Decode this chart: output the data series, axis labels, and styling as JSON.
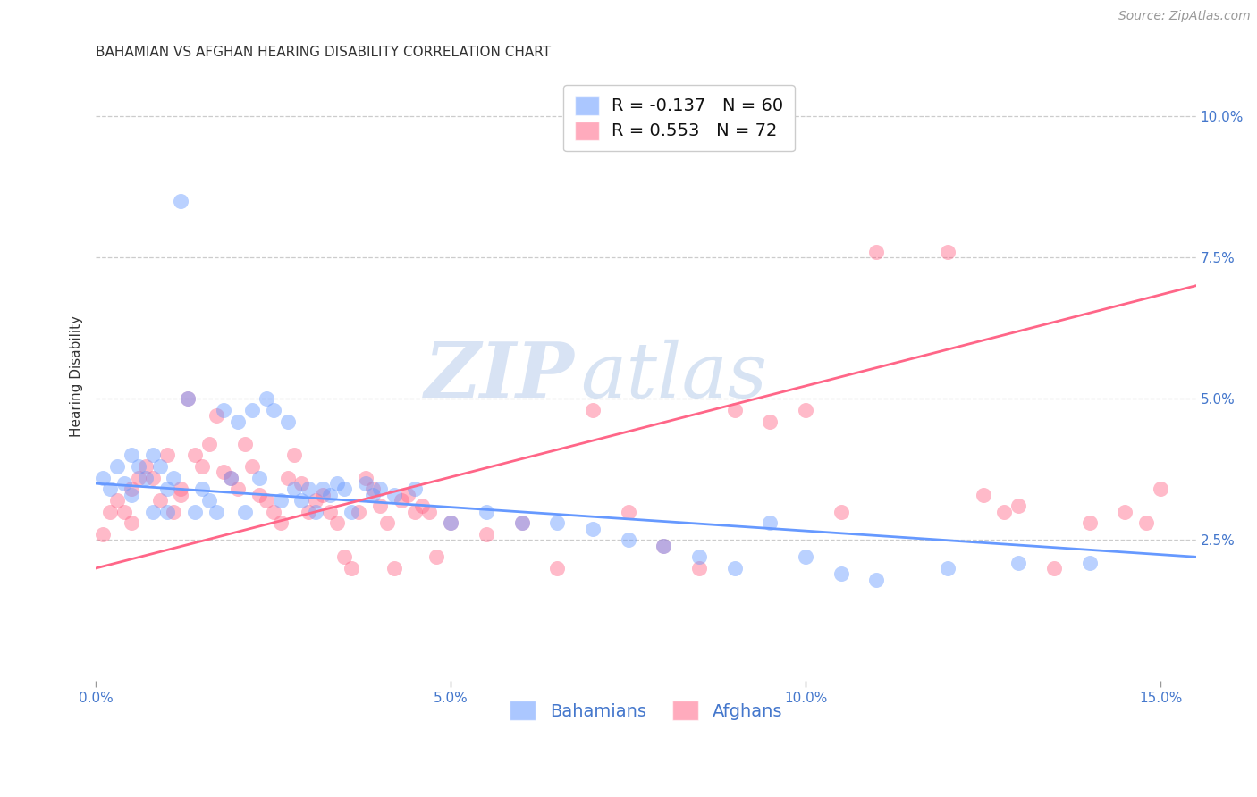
{
  "title": "BAHAMIAN VS AFGHAN HEARING DISABILITY CORRELATION CHART",
  "source": "Source: ZipAtlas.com",
  "ylabel": "Hearing Disability",
  "xlabel_ticks": [
    "0.0%",
    "5.0%",
    "10.0%",
    "15.0%"
  ],
  "xlabel_vals": [
    0.0,
    0.05,
    0.1,
    0.15
  ],
  "ylabel_ticks": [
    "2.5%",
    "5.0%",
    "7.5%",
    "10.0%"
  ],
  "ylabel_vals": [
    0.025,
    0.05,
    0.075,
    0.1
  ],
  "xmin": 0.0,
  "xmax": 0.155,
  "ymin": 0.0,
  "ymax": 0.108,
  "bahamian_color": "#6699ff",
  "afghan_color": "#ff6688",
  "bahamian_label": "Bahamians",
  "afghan_label": "Afghans",
  "R_bahamian": -0.137,
  "N_bahamian": 60,
  "R_afghan": 0.553,
  "N_afghan": 72,
  "watermark_zip": "ZIP",
  "watermark_atlas": "atlas",
  "title_fontsize": 11,
  "axis_label_fontsize": 11,
  "tick_fontsize": 11,
  "legend_fontsize": 13,
  "source_fontsize": 10,
  "background_color": "#ffffff",
  "grid_color": "#cccccc",
  "tick_color": "#4477cc",
  "title_color": "#333333",
  "bahamian_points": [
    [
      0.001,
      0.036
    ],
    [
      0.002,
      0.034
    ],
    [
      0.003,
      0.038
    ],
    [
      0.004,
      0.035
    ],
    [
      0.005,
      0.04
    ],
    [
      0.005,
      0.033
    ],
    [
      0.006,
      0.038
    ],
    [
      0.007,
      0.036
    ],
    [
      0.008,
      0.04
    ],
    [
      0.008,
      0.03
    ],
    [
      0.009,
      0.038
    ],
    [
      0.01,
      0.034
    ],
    [
      0.01,
      0.03
    ],
    [
      0.011,
      0.036
    ],
    [
      0.012,
      0.085
    ],
    [
      0.013,
      0.05
    ],
    [
      0.014,
      0.03
    ],
    [
      0.015,
      0.034
    ],
    [
      0.016,
      0.032
    ],
    [
      0.017,
      0.03
    ],
    [
      0.018,
      0.048
    ],
    [
      0.019,
      0.036
    ],
    [
      0.02,
      0.046
    ],
    [
      0.021,
      0.03
    ],
    [
      0.022,
      0.048
    ],
    [
      0.023,
      0.036
    ],
    [
      0.024,
      0.05
    ],
    [
      0.025,
      0.048
    ],
    [
      0.026,
      0.032
    ],
    [
      0.027,
      0.046
    ],
    [
      0.028,
      0.034
    ],
    [
      0.029,
      0.032
    ],
    [
      0.03,
      0.034
    ],
    [
      0.031,
      0.03
    ],
    [
      0.032,
      0.034
    ],
    [
      0.033,
      0.033
    ],
    [
      0.034,
      0.035
    ],
    [
      0.035,
      0.034
    ],
    [
      0.036,
      0.03
    ],
    [
      0.038,
      0.035
    ],
    [
      0.039,
      0.033
    ],
    [
      0.04,
      0.034
    ],
    [
      0.042,
      0.033
    ],
    [
      0.045,
      0.034
    ],
    [
      0.05,
      0.028
    ],
    [
      0.055,
      0.03
    ],
    [
      0.06,
      0.028
    ],
    [
      0.065,
      0.028
    ],
    [
      0.07,
      0.027
    ],
    [
      0.075,
      0.025
    ],
    [
      0.08,
      0.024
    ],
    [
      0.085,
      0.022
    ],
    [
      0.09,
      0.02
    ],
    [
      0.095,
      0.028
    ],
    [
      0.1,
      0.022
    ],
    [
      0.105,
      0.019
    ],
    [
      0.11,
      0.018
    ],
    [
      0.12,
      0.02
    ],
    [
      0.13,
      0.021
    ],
    [
      0.14,
      0.021
    ]
  ],
  "afghan_points": [
    [
      0.001,
      0.026
    ],
    [
      0.002,
      0.03
    ],
    [
      0.003,
      0.032
    ],
    [
      0.004,
      0.03
    ],
    [
      0.005,
      0.034
    ],
    [
      0.005,
      0.028
    ],
    [
      0.006,
      0.036
    ],
    [
      0.007,
      0.038
    ],
    [
      0.008,
      0.036
    ],
    [
      0.009,
      0.032
    ],
    [
      0.01,
      0.04
    ],
    [
      0.011,
      0.03
    ],
    [
      0.012,
      0.034
    ],
    [
      0.012,
      0.033
    ],
    [
      0.013,
      0.05
    ],
    [
      0.014,
      0.04
    ],
    [
      0.015,
      0.038
    ],
    [
      0.016,
      0.042
    ],
    [
      0.017,
      0.047
    ],
    [
      0.018,
      0.037
    ],
    [
      0.019,
      0.036
    ],
    [
      0.02,
      0.034
    ],
    [
      0.021,
      0.042
    ],
    [
      0.022,
      0.038
    ],
    [
      0.023,
      0.033
    ],
    [
      0.024,
      0.032
    ],
    [
      0.025,
      0.03
    ],
    [
      0.026,
      0.028
    ],
    [
      0.027,
      0.036
    ],
    [
      0.028,
      0.04
    ],
    [
      0.029,
      0.035
    ],
    [
      0.03,
      0.03
    ],
    [
      0.031,
      0.032
    ],
    [
      0.032,
      0.033
    ],
    [
      0.033,
      0.03
    ],
    [
      0.034,
      0.028
    ],
    [
      0.035,
      0.022
    ],
    [
      0.036,
      0.02
    ],
    [
      0.037,
      0.03
    ],
    [
      0.038,
      0.036
    ],
    [
      0.039,
      0.034
    ],
    [
      0.04,
      0.031
    ],
    [
      0.041,
      0.028
    ],
    [
      0.042,
      0.02
    ],
    [
      0.043,
      0.032
    ],
    [
      0.044,
      0.033
    ],
    [
      0.045,
      0.03
    ],
    [
      0.046,
      0.031
    ],
    [
      0.047,
      0.03
    ],
    [
      0.048,
      0.022
    ],
    [
      0.05,
      0.028
    ],
    [
      0.055,
      0.026
    ],
    [
      0.06,
      0.028
    ],
    [
      0.065,
      0.02
    ],
    [
      0.07,
      0.048
    ],
    [
      0.075,
      0.03
    ],
    [
      0.08,
      0.024
    ],
    [
      0.085,
      0.02
    ],
    [
      0.09,
      0.048
    ],
    [
      0.095,
      0.046
    ],
    [
      0.1,
      0.048
    ],
    [
      0.105,
      0.03
    ],
    [
      0.11,
      0.076
    ],
    [
      0.12,
      0.076
    ],
    [
      0.125,
      0.033
    ],
    [
      0.128,
      0.03
    ],
    [
      0.13,
      0.031
    ],
    [
      0.135,
      0.02
    ],
    [
      0.14,
      0.028
    ],
    [
      0.145,
      0.03
    ],
    [
      0.148,
      0.028
    ],
    [
      0.15,
      0.034
    ]
  ],
  "bah_line_x0": 0.0,
  "bah_line_x1": 0.155,
  "bah_line_y0": 0.035,
  "bah_line_y1": 0.022,
  "afg_line_x0": 0.0,
  "afg_line_x1": 0.155,
  "afg_line_y0": 0.02,
  "afg_line_y1": 0.07
}
